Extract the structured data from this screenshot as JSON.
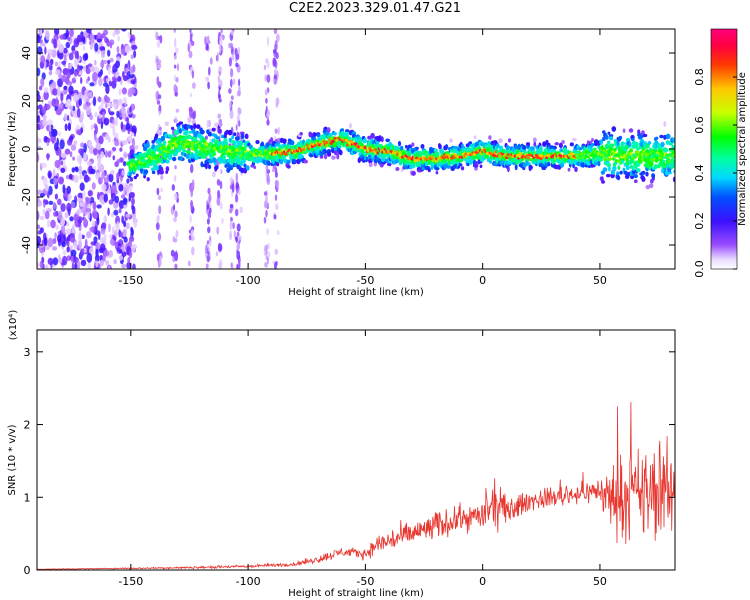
{
  "title": "C2E2.2023.329.01.47.G21",
  "chart_data": [
    {
      "type": "heatmap",
      "xlabel": "Height of straight line (km)",
      "ylabel": "Frequency (Hz)",
      "xlim": [
        -190,
        82
      ],
      "ylim": [
        -50,
        50
      ],
      "xticks": [
        -150,
        -100,
        -50,
        0,
        50
      ],
      "yticks": [
        -40,
        -20,
        0,
        20,
        40
      ],
      "colorbar": {
        "label": "Normalized spectral amplitude",
        "range": [
          0.0,
          1.0
        ],
        "ticks": [
          "0.0",
          "0.2",
          "0.4",
          "0.6",
          "0.8"
        ],
        "colormap": "rainbow (white-violet-blue-cyan-green-yellow-orange-red-magenta)"
      },
      "ridge": {
        "x": [
          -150,
          -140,
          -130,
          -120,
          -110,
          -100,
          -90,
          -80,
          -70,
          -60,
          -50,
          -40,
          -30,
          -20,
          -10,
          0,
          10,
          20,
          30,
          40,
          50,
          60,
          70,
          82
        ],
        "frequency": [
          -7,
          -3,
          3,
          1,
          -1,
          -2,
          -2,
          -1,
          2,
          4,
          0,
          -1,
          -4,
          -4,
          -3,
          -1,
          -3,
          -3,
          -3,
          -3,
          -2,
          -3,
          -3,
          -3
        ]
      },
      "noise_region_x": [
        -190,
        -148
      ]
    },
    {
      "type": "line",
      "xlabel": "Height of straight line (km)",
      "ylabel": "SNR (10 * v/v)",
      "y_multiplier": "(x10⁴)",
      "xlim": [
        -190,
        82
      ],
      "ylim": [
        0,
        3.3
      ],
      "xticks": [
        -150,
        -100,
        -50,
        0,
        50
      ],
      "yticks": [
        0,
        1,
        2,
        3
      ],
      "series_color": "#e8352e",
      "envelope": {
        "x": [
          -190,
          -160,
          -130,
          -100,
          -80,
          -70,
          -60,
          -50,
          -45,
          -40,
          -30,
          -20,
          -10,
          0,
          6,
          10,
          20,
          30,
          40,
          50,
          52,
          60,
          70,
          82
        ],
        "mean": [
          0.01,
          0.02,
          0.03,
          0.05,
          0.08,
          0.15,
          0.25,
          0.22,
          0.35,
          0.4,
          0.5,
          0.6,
          0.7,
          0.75,
          0.9,
          0.8,
          0.95,
          1.0,
          1.05,
          1.1,
          1.0,
          1.0,
          1.05,
          1.1
        ],
        "amplitude": [
          0.005,
          0.01,
          0.02,
          0.03,
          0.04,
          0.08,
          0.1,
          0.1,
          0.2,
          0.25,
          0.25,
          0.3,
          0.25,
          0.3,
          0.5,
          0.3,
          0.2,
          0.2,
          0.2,
          0.25,
          0.6,
          0.8,
          1.0,
          0.9
        ]
      }
    }
  ]
}
